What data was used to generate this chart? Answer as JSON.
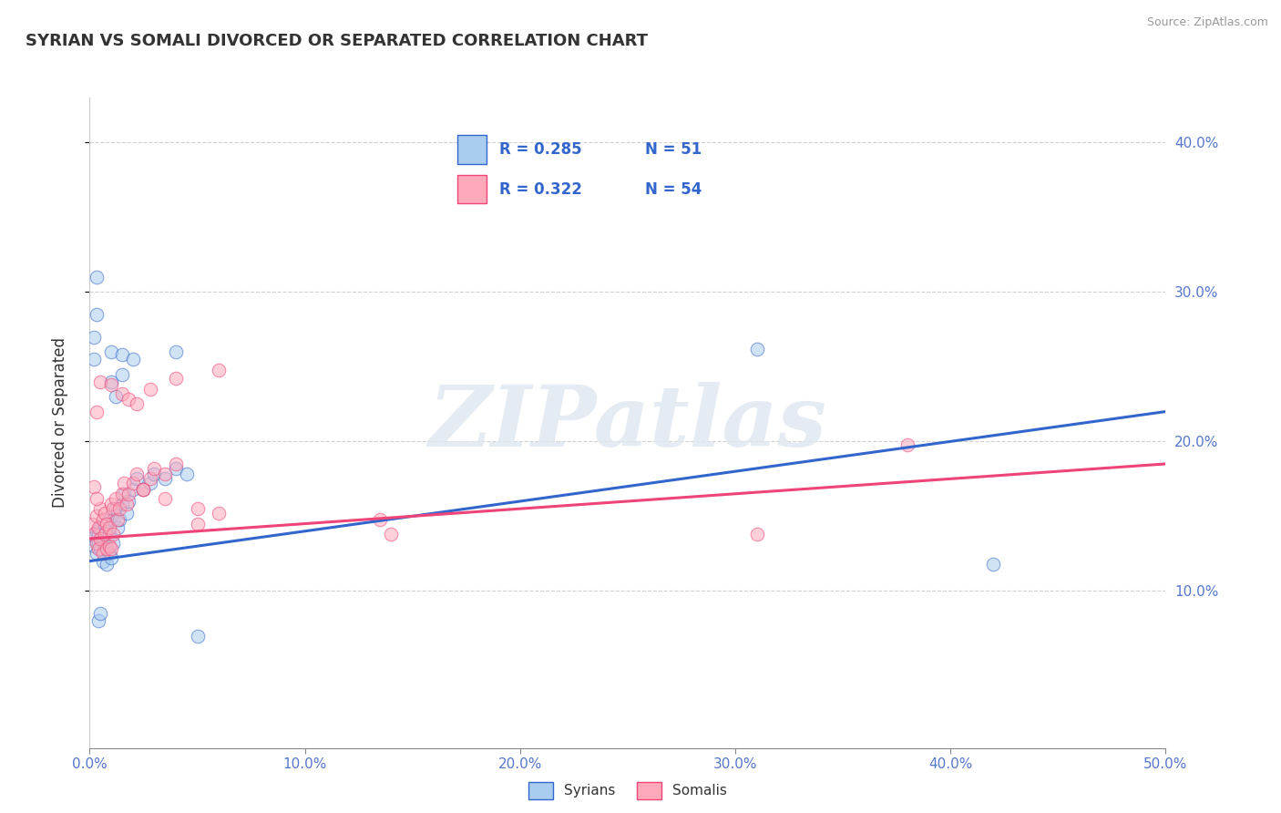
{
  "title": "SYRIAN VS SOMALI DIVORCED OR SEPARATED CORRELATION CHART",
  "source": "Source: ZipAtlas.com",
  "ylabel": "Divorced or Separated",
  "xlim": [
    0.0,
    0.5
  ],
  "ylim": [
    -0.005,
    0.43
  ],
  "xtick_labels": [
    "0.0%",
    "10.0%",
    "20.0%",
    "30.0%",
    "40.0%",
    "50.0%"
  ],
  "xtick_vals": [
    0.0,
    0.1,
    0.2,
    0.3,
    0.4,
    0.5
  ],
  "ytick_labels": [
    "10.0%",
    "20.0%",
    "30.0%",
    "40.0%"
  ],
  "ytick_vals": [
    0.1,
    0.2,
    0.3,
    0.4
  ],
  "syrian_color": "#aaccee",
  "somali_color": "#ffaabb",
  "line_syrian_color": "#3366cc",
  "line_somali_color": "#ee4477",
  "watermark_text": "ZIPatlas",
  "legend_R_syrian": "R = 0.285",
  "legend_N_syrian": "N = 51",
  "legend_R_somali": "R = 0.322",
  "legend_N_somali": "N = 54",
  "syrian_line": [
    0.12,
    0.22
  ],
  "somali_line": [
    0.135,
    0.185
  ],
  "syrian_points": [
    [
      0.001,
      0.135
    ],
    [
      0.002,
      0.13
    ],
    [
      0.003,
      0.14
    ],
    [
      0.003,
      0.125
    ],
    [
      0.004,
      0.138
    ],
    [
      0.004,
      0.132
    ],
    [
      0.005,
      0.142
    ],
    [
      0.005,
      0.128
    ],
    [
      0.006,
      0.135
    ],
    [
      0.006,
      0.12
    ],
    [
      0.007,
      0.145
    ],
    [
      0.007,
      0.13
    ],
    [
      0.008,
      0.14
    ],
    [
      0.008,
      0.118
    ],
    [
      0.009,
      0.138
    ],
    [
      0.009,
      0.125
    ],
    [
      0.01,
      0.15
    ],
    [
      0.01,
      0.122
    ],
    [
      0.011,
      0.148
    ],
    [
      0.011,
      0.132
    ],
    [
      0.012,
      0.155
    ],
    [
      0.013,
      0.142
    ],
    [
      0.014,
      0.148
    ],
    [
      0.015,
      0.158
    ],
    [
      0.016,
      0.165
    ],
    [
      0.017,
      0.152
    ],
    [
      0.018,
      0.16
    ],
    [
      0.02,
      0.168
    ],
    [
      0.022,
      0.175
    ],
    [
      0.025,
      0.168
    ],
    [
      0.028,
      0.172
    ],
    [
      0.03,
      0.178
    ],
    [
      0.035,
      0.175
    ],
    [
      0.04,
      0.182
    ],
    [
      0.045,
      0.178
    ],
    [
      0.004,
      0.08
    ],
    [
      0.005,
      0.085
    ],
    [
      0.002,
      0.27
    ],
    [
      0.003,
      0.31
    ],
    [
      0.002,
      0.255
    ],
    [
      0.003,
      0.285
    ],
    [
      0.01,
      0.26
    ],
    [
      0.01,
      0.24
    ],
    [
      0.012,
      0.23
    ],
    [
      0.015,
      0.258
    ],
    [
      0.015,
      0.245
    ],
    [
      0.02,
      0.255
    ],
    [
      0.04,
      0.26
    ],
    [
      0.31,
      0.262
    ],
    [
      0.42,
      0.118
    ],
    [
      0.05,
      0.07
    ]
  ],
  "somali_points": [
    [
      0.001,
      0.145
    ],
    [
      0.002,
      0.138
    ],
    [
      0.003,
      0.15
    ],
    [
      0.003,
      0.132
    ],
    [
      0.004,
      0.142
    ],
    [
      0.004,
      0.128
    ],
    [
      0.005,
      0.155
    ],
    [
      0.005,
      0.135
    ],
    [
      0.006,
      0.148
    ],
    [
      0.006,
      0.125
    ],
    [
      0.007,
      0.152
    ],
    [
      0.007,
      0.138
    ],
    [
      0.008,
      0.145
    ],
    [
      0.008,
      0.128
    ],
    [
      0.009,
      0.142
    ],
    [
      0.009,
      0.13
    ],
    [
      0.01,
      0.158
    ],
    [
      0.01,
      0.128
    ],
    [
      0.011,
      0.155
    ],
    [
      0.011,
      0.138
    ],
    [
      0.012,
      0.162
    ],
    [
      0.013,
      0.148
    ],
    [
      0.014,
      0.155
    ],
    [
      0.015,
      0.165
    ],
    [
      0.016,
      0.172
    ],
    [
      0.017,
      0.158
    ],
    [
      0.018,
      0.165
    ],
    [
      0.02,
      0.172
    ],
    [
      0.022,
      0.178
    ],
    [
      0.025,
      0.168
    ],
    [
      0.028,
      0.175
    ],
    [
      0.03,
      0.182
    ],
    [
      0.035,
      0.178
    ],
    [
      0.04,
      0.185
    ],
    [
      0.003,
      0.22
    ],
    [
      0.005,
      0.24
    ],
    [
      0.01,
      0.238
    ],
    [
      0.015,
      0.232
    ],
    [
      0.018,
      0.228
    ],
    [
      0.022,
      0.225
    ],
    [
      0.028,
      0.235
    ],
    [
      0.04,
      0.242
    ],
    [
      0.06,
      0.248
    ],
    [
      0.06,
      0.152
    ],
    [
      0.135,
      0.148
    ],
    [
      0.14,
      0.138
    ],
    [
      0.31,
      0.138
    ],
    [
      0.38,
      0.198
    ],
    [
      0.05,
      0.145
    ],
    [
      0.002,
      0.17
    ],
    [
      0.003,
      0.162
    ],
    [
      0.025,
      0.168
    ],
    [
      0.035,
      0.162
    ],
    [
      0.05,
      0.155
    ]
  ]
}
